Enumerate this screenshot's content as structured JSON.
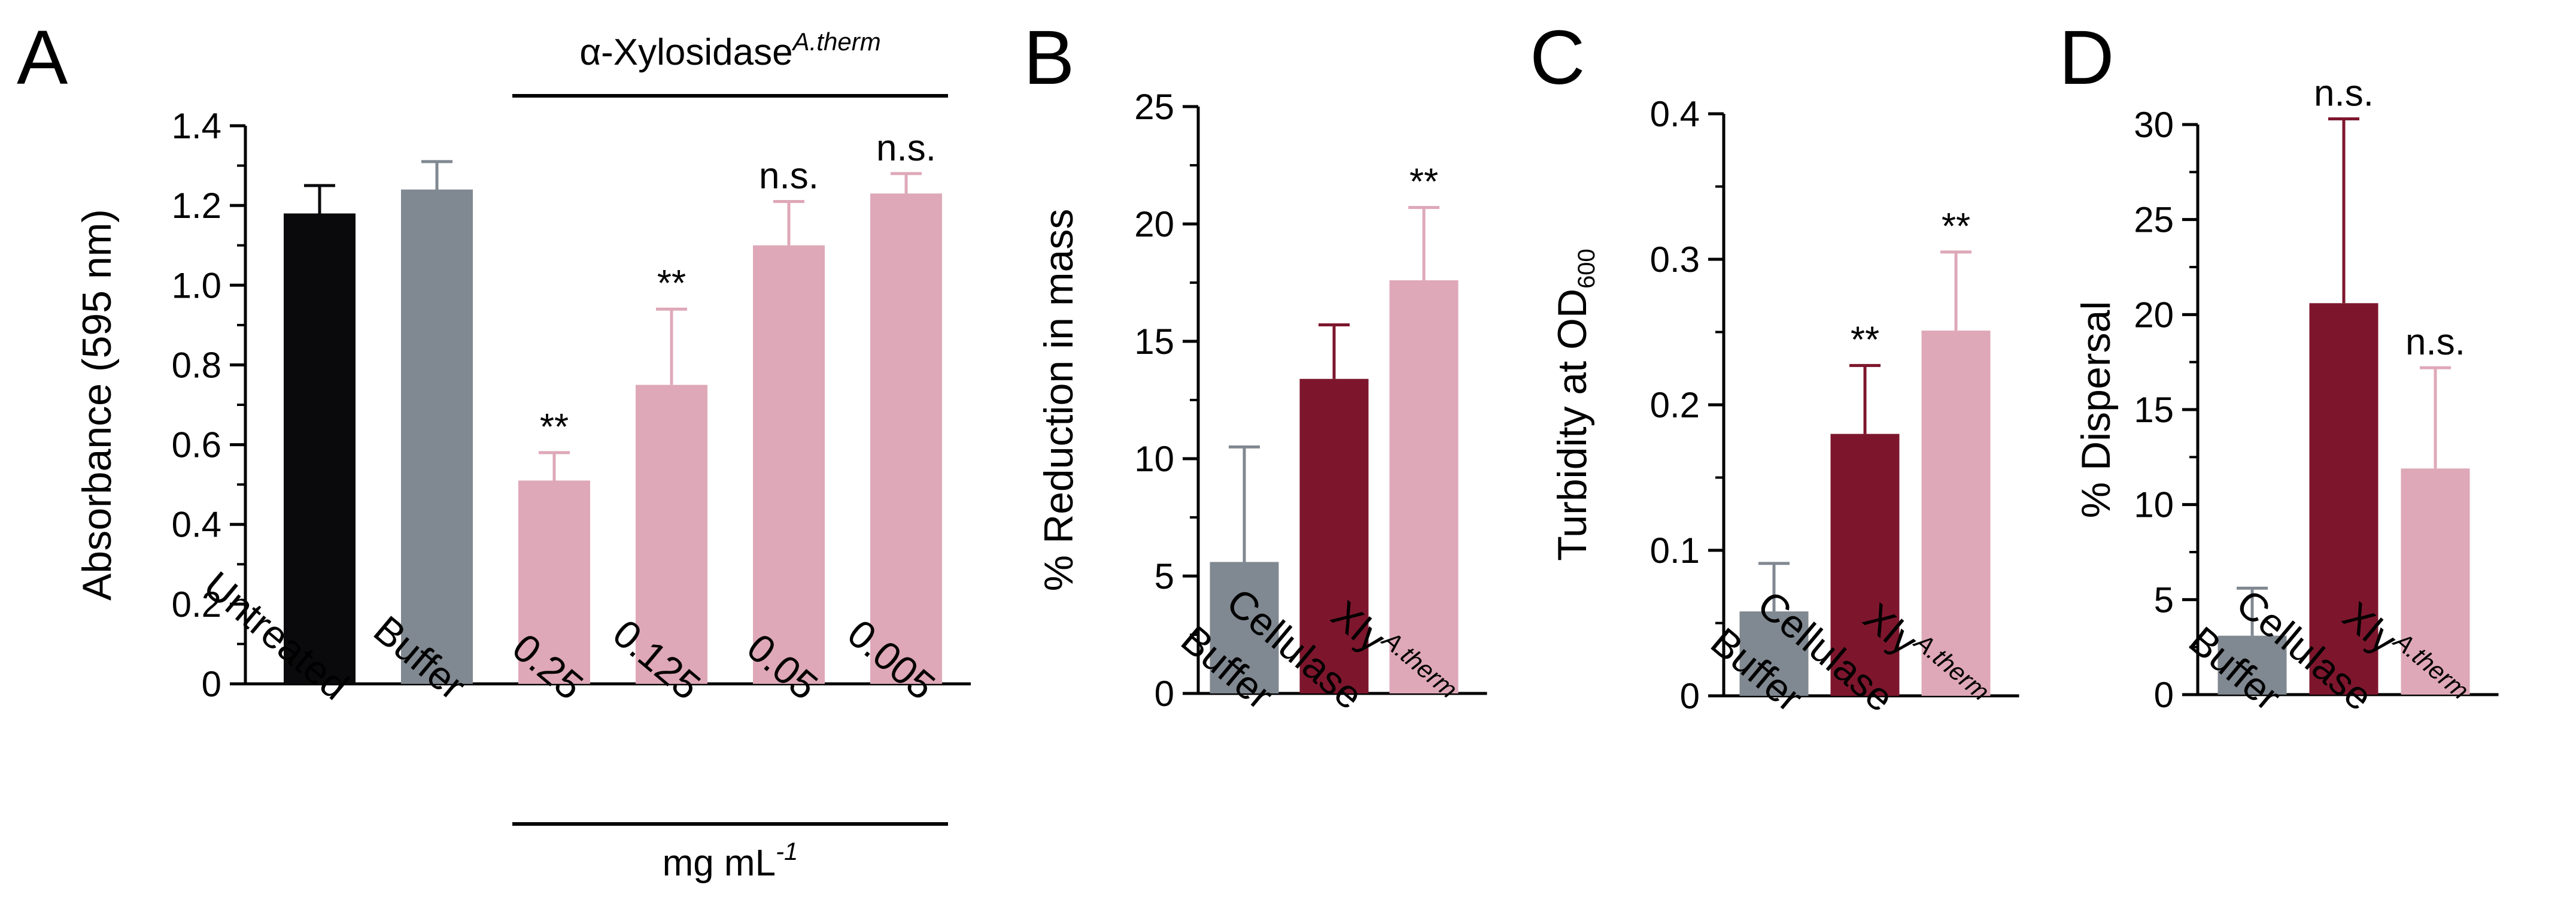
{
  "colors": {
    "untreated": "#0a0a0c",
    "buffer": "#808891",
    "cellulase": "#7d162d",
    "xylosidase": "#dea8b8"
  },
  "chart_data": [
    {
      "panel": "A",
      "type": "bar",
      "ylabel": "Absorbance (595 nm)",
      "ylim": [
        0,
        1.4
      ],
      "yticks": [
        "0",
        "0.2",
        "0.4",
        "0.6",
        "0.8",
        "1.0",
        "1.2",
        "1.4"
      ],
      "categories": [
        "Untreated",
        "Buffer",
        "0.25",
        "0.125",
        "0.05",
        "0.005"
      ],
      "values": [
        1.18,
        1.24,
        0.51,
        0.75,
        1.1,
        1.23
      ],
      "errors": [
        0.07,
        0.07,
        0.07,
        0.19,
        0.11,
        0.05
      ],
      "significance": [
        "",
        "",
        "**",
        "**",
        "n.s.",
        "n.s."
      ],
      "bar_colors": [
        "untreated",
        "buffer",
        "xylosidase",
        "xylosidase",
        "xylosidase",
        "xylosidase"
      ],
      "top_bracket": {
        "label": "α-Xylosidase",
        "superscript": "A.therm"
      },
      "bottom_bracket": {
        "label": "mg mL",
        "superscript": "-1"
      }
    },
    {
      "panel": "B",
      "type": "bar",
      "ylabel": "% Reduction in mass",
      "ylim": [
        0,
        25
      ],
      "yticks": [
        "0",
        "5",
        "10",
        "15",
        "20",
        "25"
      ],
      "categories": [
        "Buffer",
        "Cellulase",
        "Xly"
      ],
      "category_superscripts": [
        "",
        "",
        "A.therm"
      ],
      "values": [
        5.6,
        13.4,
        17.6
      ],
      "errors": [
        4.9,
        2.3,
        3.1
      ],
      "significance": [
        "",
        "",
        "**"
      ],
      "bar_colors": [
        "buffer",
        "cellulase",
        "xylosidase"
      ]
    },
    {
      "panel": "C",
      "type": "bar",
      "ylabel": "Turbidity at OD",
      "ylabel_subscript": "600",
      "ylim": [
        0,
        0.4
      ],
      "yticks": [
        "0",
        "0.1",
        "0.2",
        "0.3",
        "0.4"
      ],
      "categories": [
        "Buffer",
        "Cellulase",
        "Xly"
      ],
      "category_superscripts": [
        "",
        "",
        "A.therm"
      ],
      "values": [
        0.058,
        0.18,
        0.251
      ],
      "errors": [
        0.033,
        0.047,
        0.054
      ],
      "significance": [
        "",
        "**",
        "**"
      ],
      "bar_colors": [
        "buffer",
        "cellulase",
        "xylosidase"
      ]
    },
    {
      "panel": "D",
      "type": "bar",
      "ylabel": "% Dispersal",
      "ylim": [
        0,
        30
      ],
      "yticks": [
        "0",
        "5",
        "10",
        "15",
        "20",
        "25",
        "30"
      ],
      "categories": [
        "Buffer",
        "Cellulase",
        "Xly"
      ],
      "category_superscripts": [
        "",
        "",
        "A.therm"
      ],
      "values": [
        3.1,
        20.6,
        11.9
      ],
      "errors": [
        2.5,
        9.7,
        5.3
      ],
      "significance": [
        "",
        "n.s.",
        "n.s."
      ],
      "bar_colors": [
        "buffer",
        "cellulase",
        "xylosidase"
      ]
    }
  ]
}
